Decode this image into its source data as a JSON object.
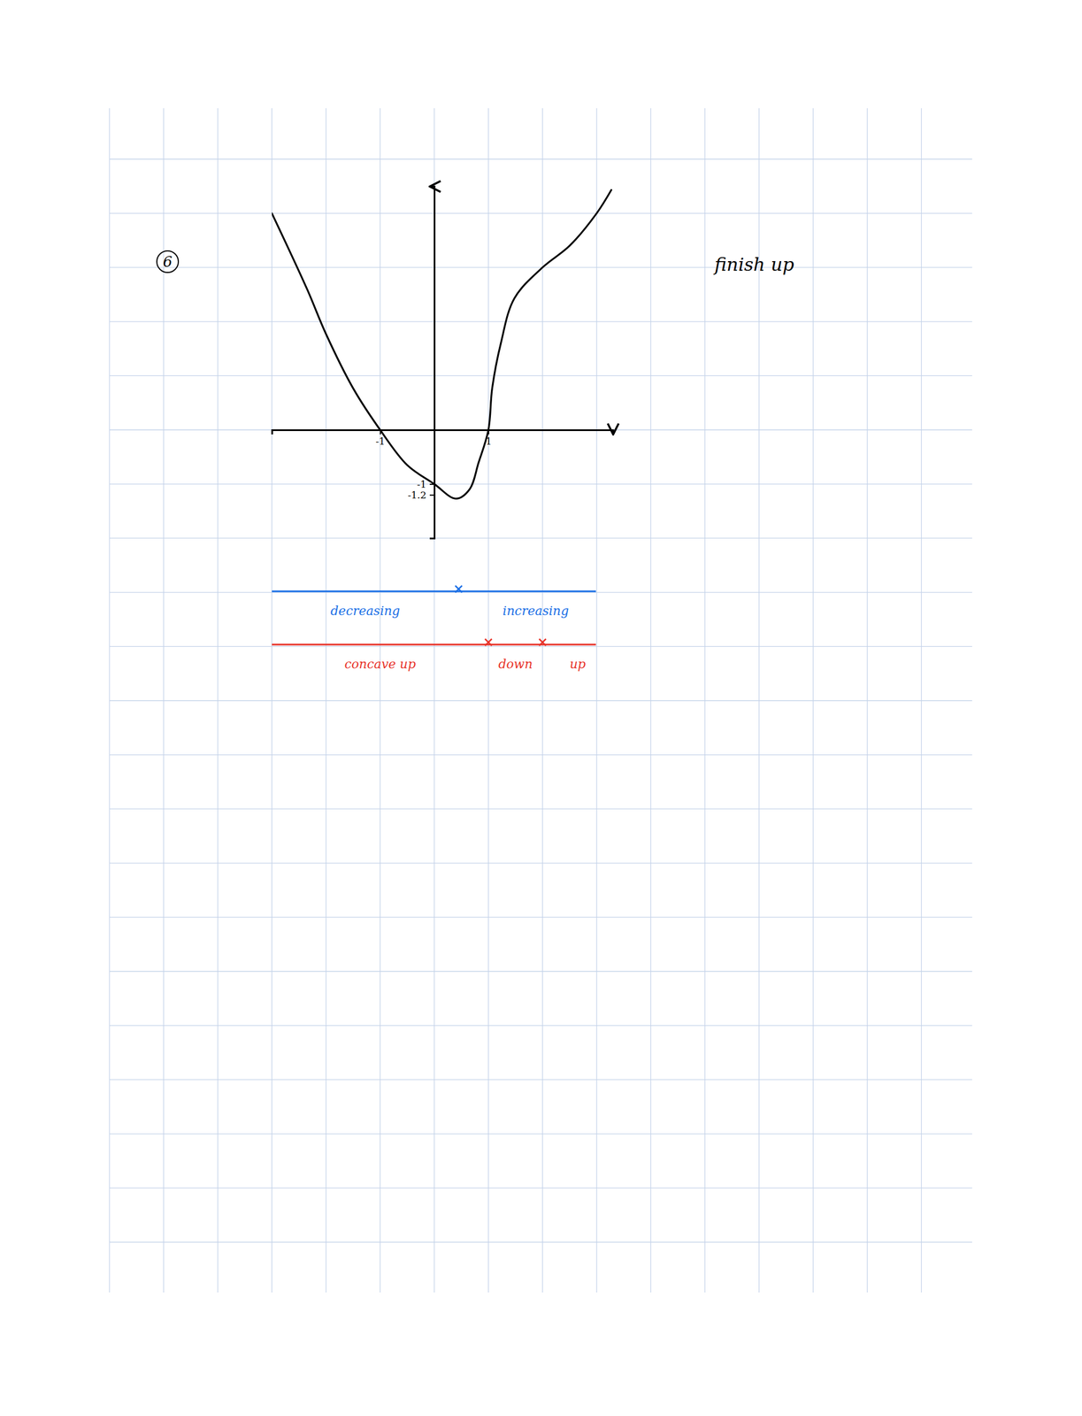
{
  "chart_data": {
    "type": "line",
    "x": [
      -3,
      -2.35,
      -2,
      -1.5,
      -1,
      -0.5,
      0,
      0.4,
      0.65,
      0.82,
      1,
      1.07,
      1.23,
      1.48,
      2,
      2.5,
      3,
      3.27
    ],
    "values": [
      4,
      2.6,
      1.77,
      0.77,
      0,
      -0.65,
      -1,
      -1.27,
      -1.1,
      -0.6,
      0,
      0.77,
      1.6,
      2.43,
      3,
      3.4,
      4,
      4.43
    ],
    "color": "#000000",
    "xlim": [
      -3,
      3.3
    ],
    "ylim": [
      -2,
      4.5
    ],
    "xticks": [
      -1,
      1
    ],
    "yticks": [
      -1,
      -1.2
    ]
  },
  "page": {
    "problem_number": "6",
    "note": "finish up",
    "sign_charts": [
      {
        "color": "#1a6fe6",
        "marks": [
          0.45
        ],
        "labels": [
          "decreasing",
          "increasing"
        ]
      },
      {
        "color": "#e8342a",
        "marks": [
          1,
          2
        ],
        "labels": [
          "concave up",
          "down",
          "up"
        ]
      }
    ]
  }
}
